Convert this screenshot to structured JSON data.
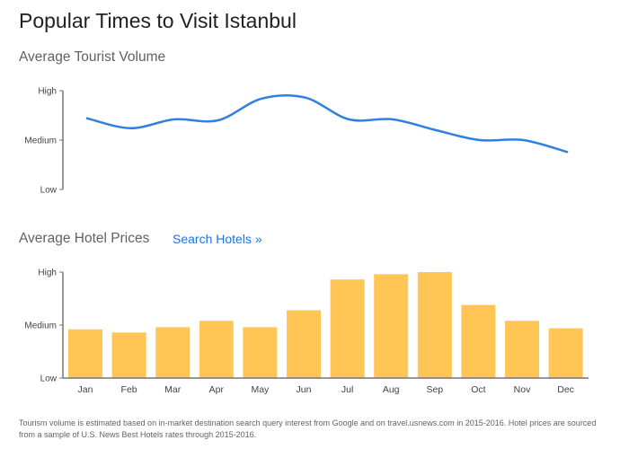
{
  "page": {
    "title": "Popular Times to Visit Istanbul"
  },
  "volume_section": {
    "title": "Average Tourist Volume"
  },
  "prices_section": {
    "title": "Average Hotel Prices",
    "search_link": "Search Hotels »"
  },
  "footer": {
    "note": "Tourism volume is estimated based on in-market destination search query interest from Google and on travel.usnews.com in 2015-2016. Hotel prices are sourced from a sample of U.S. News Best Hotels rates through 2015-2016."
  },
  "colors": {
    "line": "#2f80e0",
    "bar": "#ffc555",
    "axis": "#757575",
    "link": "#1a73e8"
  },
  "chart_data": [
    {
      "type": "line",
      "title": "Average Tourist Volume",
      "x": [
        "Jan",
        "Feb",
        "Mar",
        "Apr",
        "May",
        "Jun",
        "Jul",
        "Aug",
        "Sep",
        "Oct",
        "Nov",
        "Dec"
      ],
      "series": [
        {
          "values": [
            0.72,
            0.62,
            0.71,
            0.7,
            0.92,
            0.93,
            0.71,
            0.71,
            0.6,
            0.5,
            0.5,
            0.38
          ]
        }
      ],
      "yticks": [
        "Low",
        "Medium",
        "High"
      ],
      "ylim": [
        0,
        1
      ],
      "grid": false
    },
    {
      "type": "bar",
      "title": "Average Hotel Prices",
      "categories": [
        "Jan",
        "Feb",
        "Mar",
        "Apr",
        "May",
        "Jun",
        "Jul",
        "Aug",
        "Sep",
        "Oct",
        "Nov",
        "Dec"
      ],
      "values": [
        0.46,
        0.43,
        0.48,
        0.54,
        0.48,
        0.64,
        0.93,
        0.98,
        1.0,
        0.69,
        0.54,
        0.47
      ],
      "yticks": [
        "Low",
        "Medium",
        "High"
      ],
      "ylim": [
        0,
        1
      ],
      "grid": false
    }
  ]
}
